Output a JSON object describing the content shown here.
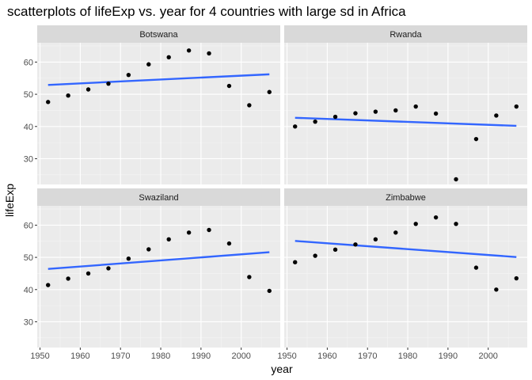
{
  "chart_data": {
    "type": "scatter",
    "title": "scatterplots of lifeExp vs. year for 4 countries with large sd in Africa",
    "xlabel": "year",
    "ylabel": "lifeExp",
    "xlim": [
      1949.3,
      2009.7
    ],
    "ylim": [
      22,
      66
    ],
    "x_ticks": [
      1950,
      1960,
      1970,
      1980,
      1990,
      2000
    ],
    "y_ticks": [
      30,
      40,
      50,
      60
    ],
    "grid": true,
    "point_color": "#000000",
    "line_color": "#3366FF",
    "panel_bg": "#EBEBEB",
    "strip_bg": "#D9D9D9",
    "x": [
      1952,
      1957,
      1962,
      1967,
      1972,
      1977,
      1982,
      1987,
      1992,
      1997,
      2002,
      2007
    ],
    "panels": [
      {
        "name": "Botswana",
        "values": [
          47.6,
          49.6,
          51.5,
          53.3,
          56.0,
          59.3,
          61.5,
          63.6,
          62.7,
          52.6,
          46.6,
          50.7
        ],
        "fit": [
          [
            1952,
            52.9
          ],
          [
            2007,
            56.2
          ]
        ]
      },
      {
        "name": "Rwanda",
        "values": [
          40.0,
          41.5,
          43.0,
          44.1,
          44.6,
          45.0,
          46.2,
          44.0,
          23.6,
          36.1,
          43.4,
          46.2
        ],
        "fit": [
          [
            1952,
            42.7
          ],
          [
            2007,
            40.2
          ]
        ]
      },
      {
        "name": "Swaziland",
        "values": [
          41.4,
          43.4,
          45.0,
          46.6,
          49.6,
          52.5,
          55.6,
          57.7,
          58.5,
          54.3,
          43.9,
          39.6
        ],
        "fit": [
          [
            1952,
            46.4
          ],
          [
            2007,
            51.6
          ]
        ]
      },
      {
        "name": "Zimbabwe",
        "values": [
          48.5,
          50.5,
          52.4,
          54.0,
          55.6,
          57.7,
          60.4,
          62.4,
          60.4,
          46.8,
          40.0,
          43.5
        ],
        "fit": [
          [
            1952,
            55.1
          ],
          [
            2007,
            50.1
          ]
        ]
      }
    ]
  }
}
